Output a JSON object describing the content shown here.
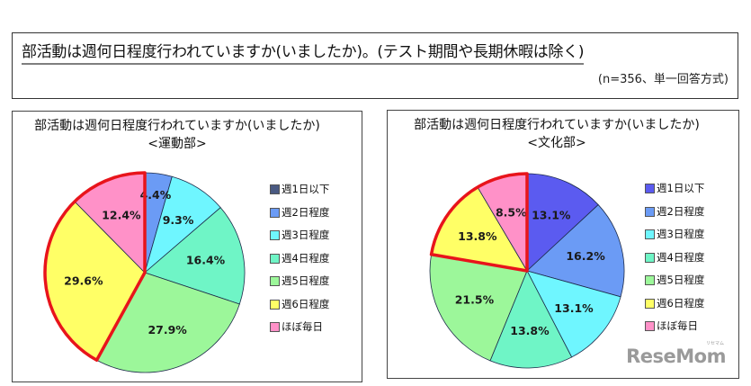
{
  "header": {
    "title": "部活動は週何日程度行われていますか(いましたか)。(テスト期間や長期休暇は除く)",
    "sample_note": "(n=356、単一回答方式)"
  },
  "legend_labels": [
    "週1日以下",
    "週2日程度",
    "週3日程度",
    "週4日程度",
    "週5日程度",
    "週6日程度",
    "ほぼ毎日"
  ],
  "colors": {
    "series": [
      "#5b5bf0",
      "#6b9bf5",
      "#6ff6ff",
      "#6ff5c6",
      "#9cf79a",
      "#ffff66",
      "#ff91c8"
    ],
    "legend_left_first": "#4a5a82",
    "highlight_outline": "#e8141b"
  },
  "chart_data": [
    {
      "type": "pie",
      "title": "部活動は週何日程度行われていますか(いましたか)",
      "subtitle": "<運動部>",
      "categories": [
        "週1日以下",
        "週2日程度",
        "週3日程度",
        "週4日程度",
        "週5日程度",
        "週6日程度",
        "ほぼ毎日"
      ],
      "values": [
        0.0,
        4.4,
        9.3,
        16.4,
        27.9,
        29.6,
        12.4
      ],
      "labels": [
        "",
        "4.4%",
        "9.3%",
        "16.4%",
        "27.9%",
        "29.6%",
        "12.4%"
      ],
      "highlighted": [
        "週6日程度",
        "ほぼ毎日"
      ],
      "legend_position": "right"
    },
    {
      "type": "pie",
      "title": "部活動は週何日程度行われていますか(いましたか)",
      "subtitle": "<文化部>",
      "categories": [
        "週1日以下",
        "週2日程度",
        "週3日程度",
        "週4日程度",
        "週5日程度",
        "週6日程度",
        "ほぼ毎日"
      ],
      "values": [
        13.1,
        16.2,
        13.1,
        13.8,
        21.5,
        13.8,
        8.5
      ],
      "labels": [
        "13.1%",
        "16.2%",
        "13.1%",
        "13.8%",
        "21.5%",
        "13.8%",
        "8.5%"
      ],
      "highlighted": [
        "週6日程度",
        "ほぼ毎日"
      ],
      "legend_position": "right"
    }
  ],
  "panels": {
    "left": {
      "title": "部活動は週何日程度行われていますか(いましたか)",
      "subtitle": "<運動部>"
    },
    "right": {
      "title": "部活動は週何日程度行われていますか(いましたか)",
      "subtitle": "<文化部>"
    }
  },
  "watermark": {
    "text": "ReseMom",
    "ruby": "リセマム"
  }
}
